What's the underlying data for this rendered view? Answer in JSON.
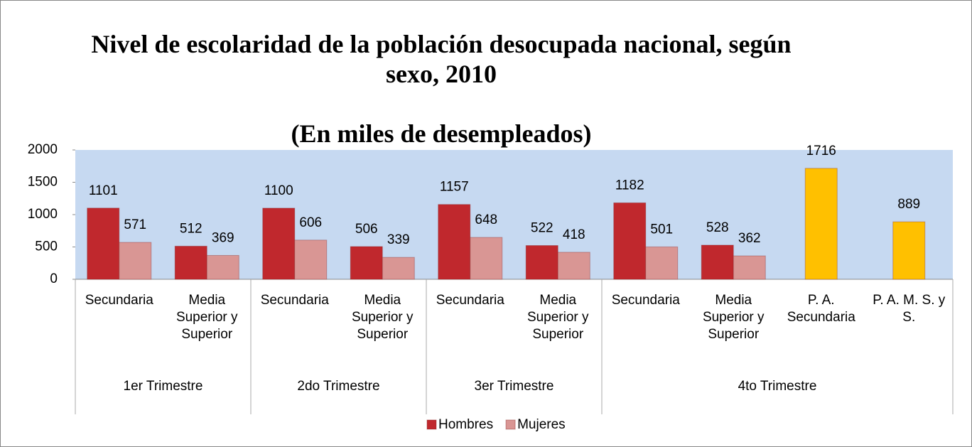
{
  "chart_data": {
    "type": "bar",
    "title": "Nivel de escolaridad de la población desocupada nacional, según sexo, 2010",
    "subtitle": "(En miles de desempleados)",
    "categories": [
      "Secundaria",
      "Media Superior y Superior",
      "Secundaria",
      "Media Superior y Superior",
      "Secundaria",
      "Media Superior y Superior",
      "Secundaria",
      "Media Superior y Superior",
      "P. A. Secundaria",
      "P. A. M. S. y S."
    ],
    "groups": [
      {
        "label": "1er Trimestre",
        "span": 2
      },
      {
        "label": "2do Trimestre",
        "span": 2
      },
      {
        "label": "3er Trimestre",
        "span": 2
      },
      {
        "label": "4to Trimestre",
        "span": 4
      }
    ],
    "series": [
      {
        "name": "Hombres",
        "color": "#c0282d",
        "values": [
          1101,
          512,
          1100,
          506,
          1157,
          522,
          1182,
          528,
          null,
          null
        ]
      },
      {
        "name": "Mujeres",
        "color": "#d99694",
        "values": [
          571,
          369,
          606,
          339,
          648,
          418,
          501,
          362,
          null,
          null
        ]
      },
      {
        "color": "#ffc000",
        "values": [
          null,
          null,
          null,
          null,
          null,
          null,
          null,
          null,
          1716,
          889
        ]
      }
    ],
    "ylim": [
      0,
      2000
    ],
    "yticks": [
      0,
      500,
      1000,
      1500,
      2000
    ],
    "plot_background": "#c6d9f1",
    "legend": "bottom"
  }
}
